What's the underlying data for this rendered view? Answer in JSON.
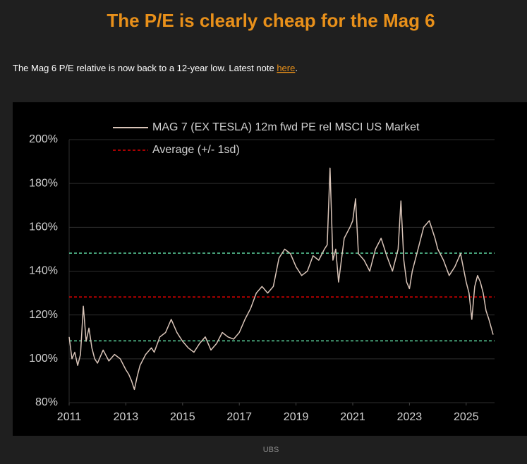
{
  "header": {
    "title": "The P/E is clearly cheap for the Mag 6",
    "note": "The Mag 6 P/E relative is now back to a 12-year low. Latest note ",
    "link": "here",
    "note_end": "."
  },
  "chart_data": {
    "type": "line",
    "x": [
      2011.0,
      2011.1,
      2011.2,
      2011.3,
      2011.4,
      2011.5,
      2011.6,
      2011.7,
      2011.8,
      2011.9,
      2012.0,
      2012.2,
      2012.4,
      2012.6,
      2012.8,
      2013.0,
      2013.1,
      2013.2,
      2013.3,
      2013.4,
      2013.5,
      2013.7,
      2013.9,
      2014.0,
      2014.2,
      2014.4,
      2014.6,
      2014.8,
      2015.0,
      2015.2,
      2015.4,
      2015.6,
      2015.8,
      2016.0,
      2016.2,
      2016.4,
      2016.6,
      2016.8,
      2017.0,
      2017.2,
      2017.4,
      2017.6,
      2017.8,
      2018.0,
      2018.2,
      2018.4,
      2018.6,
      2018.8,
      2019.0,
      2019.2,
      2019.4,
      2019.6,
      2019.8,
      2020.0,
      2020.1,
      2020.2,
      2020.3,
      2020.4,
      2020.5,
      2020.7,
      2020.9,
      2021.0,
      2021.1,
      2021.2,
      2021.4,
      2021.6,
      2021.8,
      2022.0,
      2022.2,
      2022.4,
      2022.6,
      2022.7,
      2022.8,
      2022.9,
      2023.0,
      2023.1,
      2023.3,
      2023.5,
      2023.7,
      2023.9,
      2024.0,
      2024.2,
      2024.4,
      2024.6,
      2024.8,
      2025.0,
      2025.1,
      2025.2,
      2025.3,
      2025.4,
      2025.5,
      2025.6,
      2025.7,
      2025.8,
      2025.95
    ],
    "series": [
      {
        "name": "MAG 7 (EX TESLA) 12m fwd PE rel MSCI US Market",
        "color": "#d9c4b8",
        "values": [
          110,
          100,
          103,
          97,
          102,
          124,
          108,
          114,
          105,
          100,
          98,
          104,
          99,
          102,
          100,
          95,
          93,
          90,
          86,
          92,
          97,
          102,
          105,
          103,
          110,
          112,
          118,
          112,
          108,
          105,
          103,
          107,
          110,
          104,
          107,
          112,
          110,
          109,
          112,
          118,
          123,
          130,
          133,
          130,
          133,
          146,
          150,
          148,
          142,
          138,
          140,
          147,
          145,
          150,
          152,
          187,
          145,
          150,
          135,
          155,
          160,
          163,
          173,
          148,
          145,
          140,
          150,
          155,
          147,
          140,
          150,
          172,
          145,
          135,
          132,
          140,
          150,
          160,
          163,
          155,
          150,
          145,
          138,
          142,
          148,
          135,
          130,
          118,
          133,
          138,
          135,
          130,
          122,
          118,
          111
        ]
      }
    ],
    "average": {
      "name": "Average (+/- 1sd)",
      "value": 128.2,
      "sd": 20,
      "color": "#e00000",
      "band_color": "#5ed6a0"
    },
    "xlim": [
      2011,
      2026
    ],
    "xticks": [
      2011,
      2013,
      2015,
      2017,
      2019,
      2021,
      2023,
      2025
    ],
    "ylim": [
      80,
      200
    ],
    "yticks": [
      {
        "value": 80,
        "label": "80%"
      },
      {
        "value": 100,
        "label": "100%"
      },
      {
        "value": 120,
        "label": "120%"
      },
      {
        "value": 140,
        "label": "140%"
      },
      {
        "value": 160,
        "label": "160%"
      },
      {
        "value": 180,
        "label": "180%"
      },
      {
        "value": 200,
        "label": "200%"
      }
    ],
    "grid": true,
    "source": "UBS"
  }
}
